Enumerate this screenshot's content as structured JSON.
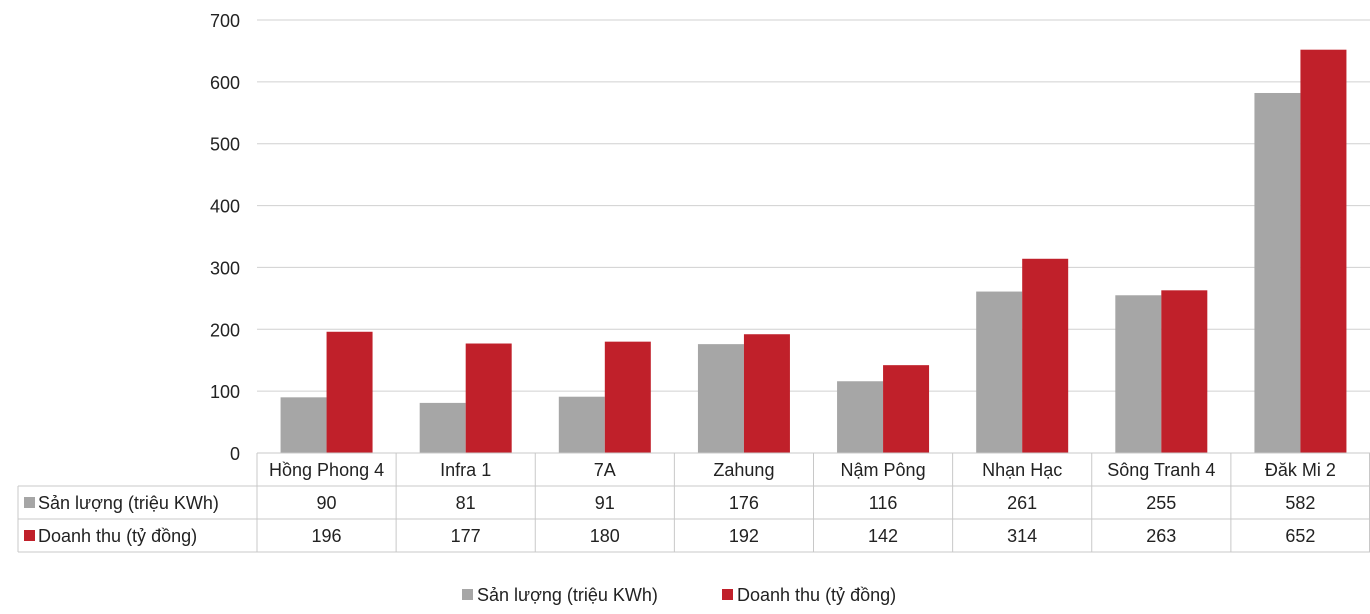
{
  "chart_data": {
    "type": "bar",
    "categories": [
      "Hồng Phong 4",
      "Infra 1",
      "7A",
      "Zahung",
      "Nậm Pông",
      "Nhạn Hạc",
      "Sông Tranh 4",
      "Đăk Mi 2"
    ],
    "series": [
      {
        "name": "Sản lượng (triệu KWh)",
        "values": [
          90,
          81,
          91,
          176,
          116,
          261,
          255,
          582
        ],
        "color": "#a6a6a6"
      },
      {
        "name": "Doanh thu (tỷ đồng)",
        "values": [
          196,
          177,
          180,
          192,
          142,
          314,
          263,
          652
        ],
        "color": "#c0202a"
      }
    ],
    "ylim": [
      0,
      700
    ],
    "yticks": [
      0,
      100,
      200,
      300,
      400,
      500,
      600,
      700
    ],
    "grid": true,
    "data_table": true,
    "legend_position": "bottom-center"
  }
}
